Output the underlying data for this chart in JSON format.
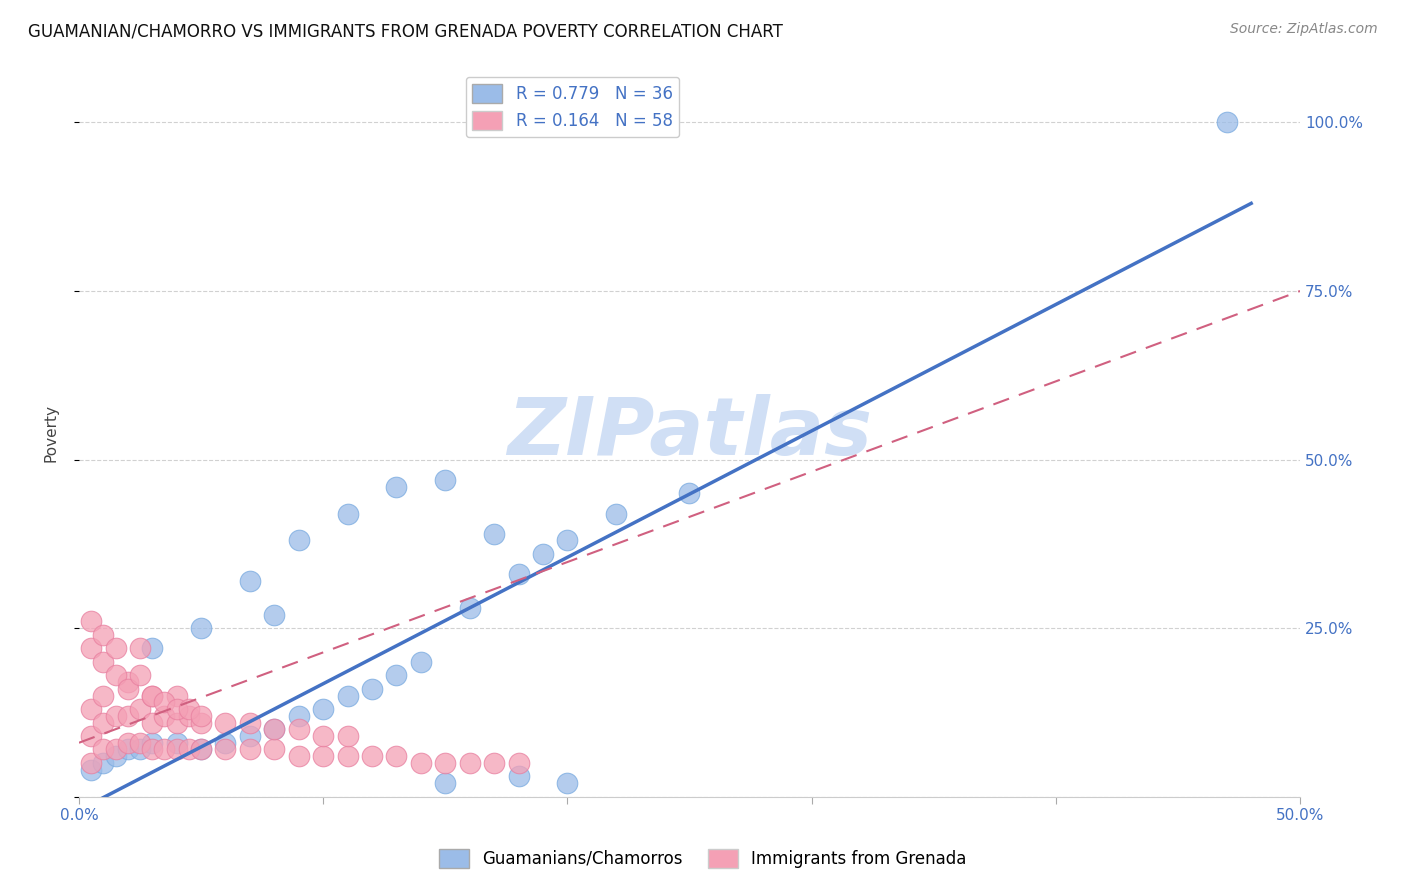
{
  "title": "GUAMANIAN/CHAMORRO VS IMMIGRANTS FROM GRENADA POVERTY CORRELATION CHART",
  "source": "Source: ZipAtlas.com",
  "ylabel": "Poverty",
  "xlim": [
    0.0,
    0.5
  ],
  "ylim": [
    0.0,
    1.08
  ],
  "blue_color": "#9BBCE8",
  "blue_edge_color": "#7AABE0",
  "pink_color": "#F4A0B5",
  "pink_edge_color": "#E880A0",
  "blue_line_color": "#4472C4",
  "pink_line_color": "#D06080",
  "R_blue": 0.779,
  "N_blue": 36,
  "R_pink": 0.164,
  "N_pink": 58,
  "blue_line_x0": 0.0,
  "blue_line_y0": -0.02,
  "blue_line_x1": 0.48,
  "blue_line_y1": 0.88,
  "pink_line_x0": 0.0,
  "pink_line_y0": 0.08,
  "pink_line_x1": 0.5,
  "pink_line_y1": 0.75,
  "blue_x": [
    0.005,
    0.01,
    0.015,
    0.02,
    0.025,
    0.03,
    0.04,
    0.05,
    0.06,
    0.07,
    0.08,
    0.09,
    0.1,
    0.11,
    0.12,
    0.13,
    0.14,
    0.16,
    0.18,
    0.2,
    0.07,
    0.09,
    0.11,
    0.13,
    0.15,
    0.17,
    0.19,
    0.22,
    0.25,
    0.03,
    0.05,
    0.08,
    0.15,
    0.18,
    0.2,
    0.47
  ],
  "blue_y": [
    0.04,
    0.05,
    0.06,
    0.07,
    0.07,
    0.08,
    0.08,
    0.07,
    0.08,
    0.09,
    0.1,
    0.12,
    0.13,
    0.15,
    0.16,
    0.18,
    0.2,
    0.28,
    0.33,
    0.38,
    0.32,
    0.38,
    0.42,
    0.46,
    0.47,
    0.39,
    0.36,
    0.42,
    0.45,
    0.22,
    0.25,
    0.27,
    0.02,
    0.03,
    0.02,
    1.0
  ],
  "pink_x": [
    0.005,
    0.005,
    0.005,
    0.01,
    0.01,
    0.01,
    0.015,
    0.015,
    0.02,
    0.02,
    0.02,
    0.025,
    0.025,
    0.03,
    0.03,
    0.03,
    0.035,
    0.035,
    0.04,
    0.04,
    0.04,
    0.045,
    0.045,
    0.05,
    0.05,
    0.06,
    0.06,
    0.07,
    0.07,
    0.08,
    0.08,
    0.09,
    0.09,
    0.1,
    0.1,
    0.11,
    0.11,
    0.12,
    0.13,
    0.14,
    0.15,
    0.16,
    0.17,
    0.18,
    0.005,
    0.005,
    0.01,
    0.01,
    0.015,
    0.015,
    0.02,
    0.025,
    0.025,
    0.03,
    0.035,
    0.04,
    0.045,
    0.05
  ],
  "pink_y": [
    0.05,
    0.09,
    0.13,
    0.07,
    0.11,
    0.15,
    0.07,
    0.12,
    0.08,
    0.12,
    0.17,
    0.08,
    0.13,
    0.07,
    0.11,
    0.15,
    0.07,
    0.12,
    0.07,
    0.11,
    0.15,
    0.07,
    0.12,
    0.07,
    0.11,
    0.07,
    0.11,
    0.07,
    0.11,
    0.07,
    0.1,
    0.06,
    0.1,
    0.06,
    0.09,
    0.06,
    0.09,
    0.06,
    0.06,
    0.05,
    0.05,
    0.05,
    0.05,
    0.05,
    0.22,
    0.26,
    0.2,
    0.24,
    0.18,
    0.22,
    0.16,
    0.18,
    0.22,
    0.15,
    0.14,
    0.13,
    0.13,
    0.12
  ],
  "legend1_label": "Guamanians/Chamorros",
  "legend2_label": "Immigrants from Grenada",
  "background_color": "#ffffff",
  "grid_color": "#cccccc",
  "watermark_color": "#d0dff5",
  "title_color": "#111111",
  "source_color": "#888888",
  "axis_text_color": "#4472C4",
  "ylabel_color": "#444444"
}
